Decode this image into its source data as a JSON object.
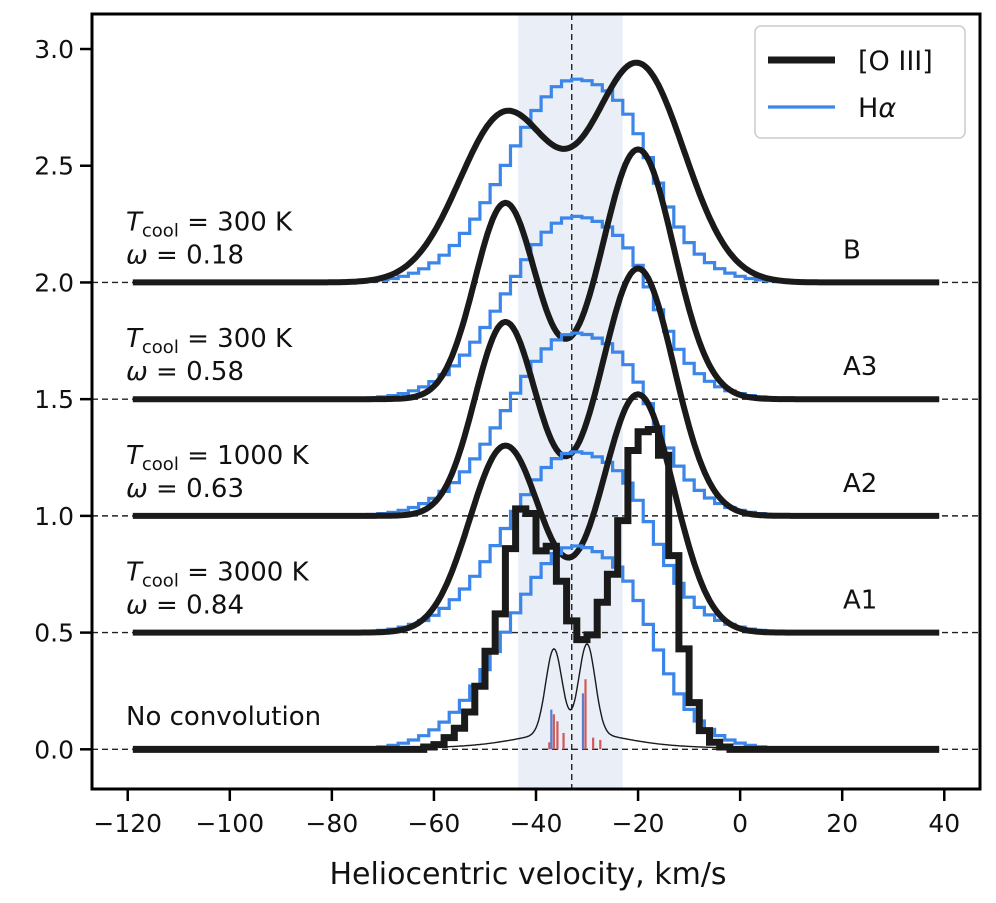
{
  "chart_data": {
    "type": "line",
    "xlabel": "Heliocentric velocity, km/s",
    "ylabel": "",
    "xlim": [
      -127,
      47
    ],
    "ylim": [
      -0.17,
      3.15
    ],
    "xticks": [
      -120,
      -100,
      -80,
      -60,
      -40,
      -20,
      0,
      20,
      40
    ],
    "xtick_labels": [
      "−120",
      "−100",
      "−80",
      "−60",
      "−40",
      "−20",
      "0",
      "20",
      "40"
    ],
    "yticks": [
      0.0,
      0.5,
      1.0,
      1.5,
      2.0,
      2.5,
      3.0
    ],
    "ytick_labels": [
      "0.0",
      "0.5",
      "1.0",
      "1.5",
      "2.0",
      "2.5",
      "3.0"
    ],
    "shaded_band": [
      -43.5,
      -23
    ],
    "vline_x": -33,
    "baselines": [
      0.0,
      0.5,
      1.0,
      1.5,
      2.0
    ],
    "colors": {
      "oiii": "#1a1a1a",
      "halpha": "#3b86e8",
      "band": "#e9eef7",
      "sticks_red": "#cf5a5a",
      "sticks_blue": "#5a7fd0"
    },
    "legend": {
      "placement": "top-right",
      "items": [
        "[O III]",
        "Hα"
      ]
    },
    "panels": [
      {
        "name": "B",
        "offset": 2.0,
        "t_cool": "300 K",
        "omega": "0.18",
        "peaks": [
          {
            "center": -46,
            "sigma": 9,
            "amp": 0.72
          },
          {
            "center": -20,
            "sigma": 9,
            "amp": 0.93
          }
        ],
        "halpha_amp": 0.99
      },
      {
        "name": "A3",
        "offset": 1.5,
        "t_cool": "300 K",
        "omega": "0.58",
        "peaks": [
          {
            "center": -46,
            "sigma": 6,
            "amp": 0.84
          },
          {
            "center": -20,
            "sigma": 7,
            "amp": 1.07
          }
        ],
        "halpha_amp": 0.89
      },
      {
        "name": "A2",
        "offset": 1.0,
        "t_cool": "1000 K",
        "omega": "0.63",
        "peaks": [
          {
            "center": -46,
            "sigma": 6,
            "amp": 0.83
          },
          {
            "center": -20,
            "sigma": 7,
            "amp": 1.06
          }
        ],
        "halpha_amp": 0.89
      },
      {
        "name": "A1",
        "offset": 0.5,
        "t_cool": "3000 K",
        "omega": "0.84",
        "peaks": [
          {
            "center": -46,
            "sigma": 7,
            "amp": 0.8
          },
          {
            "center": -20,
            "sigma": 7,
            "amp": 1.02
          }
        ],
        "halpha_amp": 0.88
      }
    ],
    "unconvolved": {
      "label": "No convolution",
      "oiii_bins": [
        [
          -62,
          0.01
        ],
        [
          -60,
          0.02
        ],
        [
          -58,
          0.05
        ],
        [
          -56,
          0.09
        ],
        [
          -54,
          0.16
        ],
        [
          -52,
          0.27
        ],
        [
          -50,
          0.42
        ],
        [
          -48,
          0.58
        ],
        [
          -46,
          0.86
        ],
        [
          -44,
          1.03
        ],
        [
          -42,
          1.01
        ],
        [
          -40,
          0.85
        ],
        [
          -38,
          0.87
        ],
        [
          -36,
          0.72
        ],
        [
          -34,
          0.55
        ],
        [
          -32,
          0.47
        ],
        [
          -30,
          0.49
        ],
        [
          -28,
          0.63
        ],
        [
          -26,
          0.75
        ],
        [
          -24,
          0.98
        ],
        [
          -22,
          1.28
        ],
        [
          -20,
          1.36
        ],
        [
          -18,
          1.37
        ],
        [
          -16,
          1.26
        ],
        [
          -14,
          0.83
        ],
        [
          -12,
          0.43
        ],
        [
          -10,
          0.2
        ],
        [
          -8,
          0.08
        ],
        [
          -6,
          0.03
        ],
        [
          -4,
          0.01
        ]
      ],
      "halpha_amp": 0.99,
      "halpha_sigma": 12.5,
      "thin_line_peaks": [
        {
          "center": -36.5,
          "sigma": 1.6,
          "amp": 0.36
        },
        {
          "center": -30,
          "sigma": 1.6,
          "amp": 0.38
        }
      ],
      "sticks_red": [
        [
          -36.5,
          0.15
        ],
        [
          -35.8,
          0.12
        ],
        [
          -34.6,
          0.07
        ],
        [
          -30.3,
          0.3
        ],
        [
          -28.8,
          0.05
        ],
        [
          -27.4,
          0.04
        ],
        [
          -37.4,
          0.03
        ]
      ],
      "sticks_blue": [
        [
          -37.0,
          0.17
        ],
        [
          -30.8,
          0.24
        ]
      ]
    },
    "annotations": {
      "t_symbol": "T",
      "t_sub": "cool",
      "eq": " = ",
      "omega_symbol": "ω"
    }
  }
}
